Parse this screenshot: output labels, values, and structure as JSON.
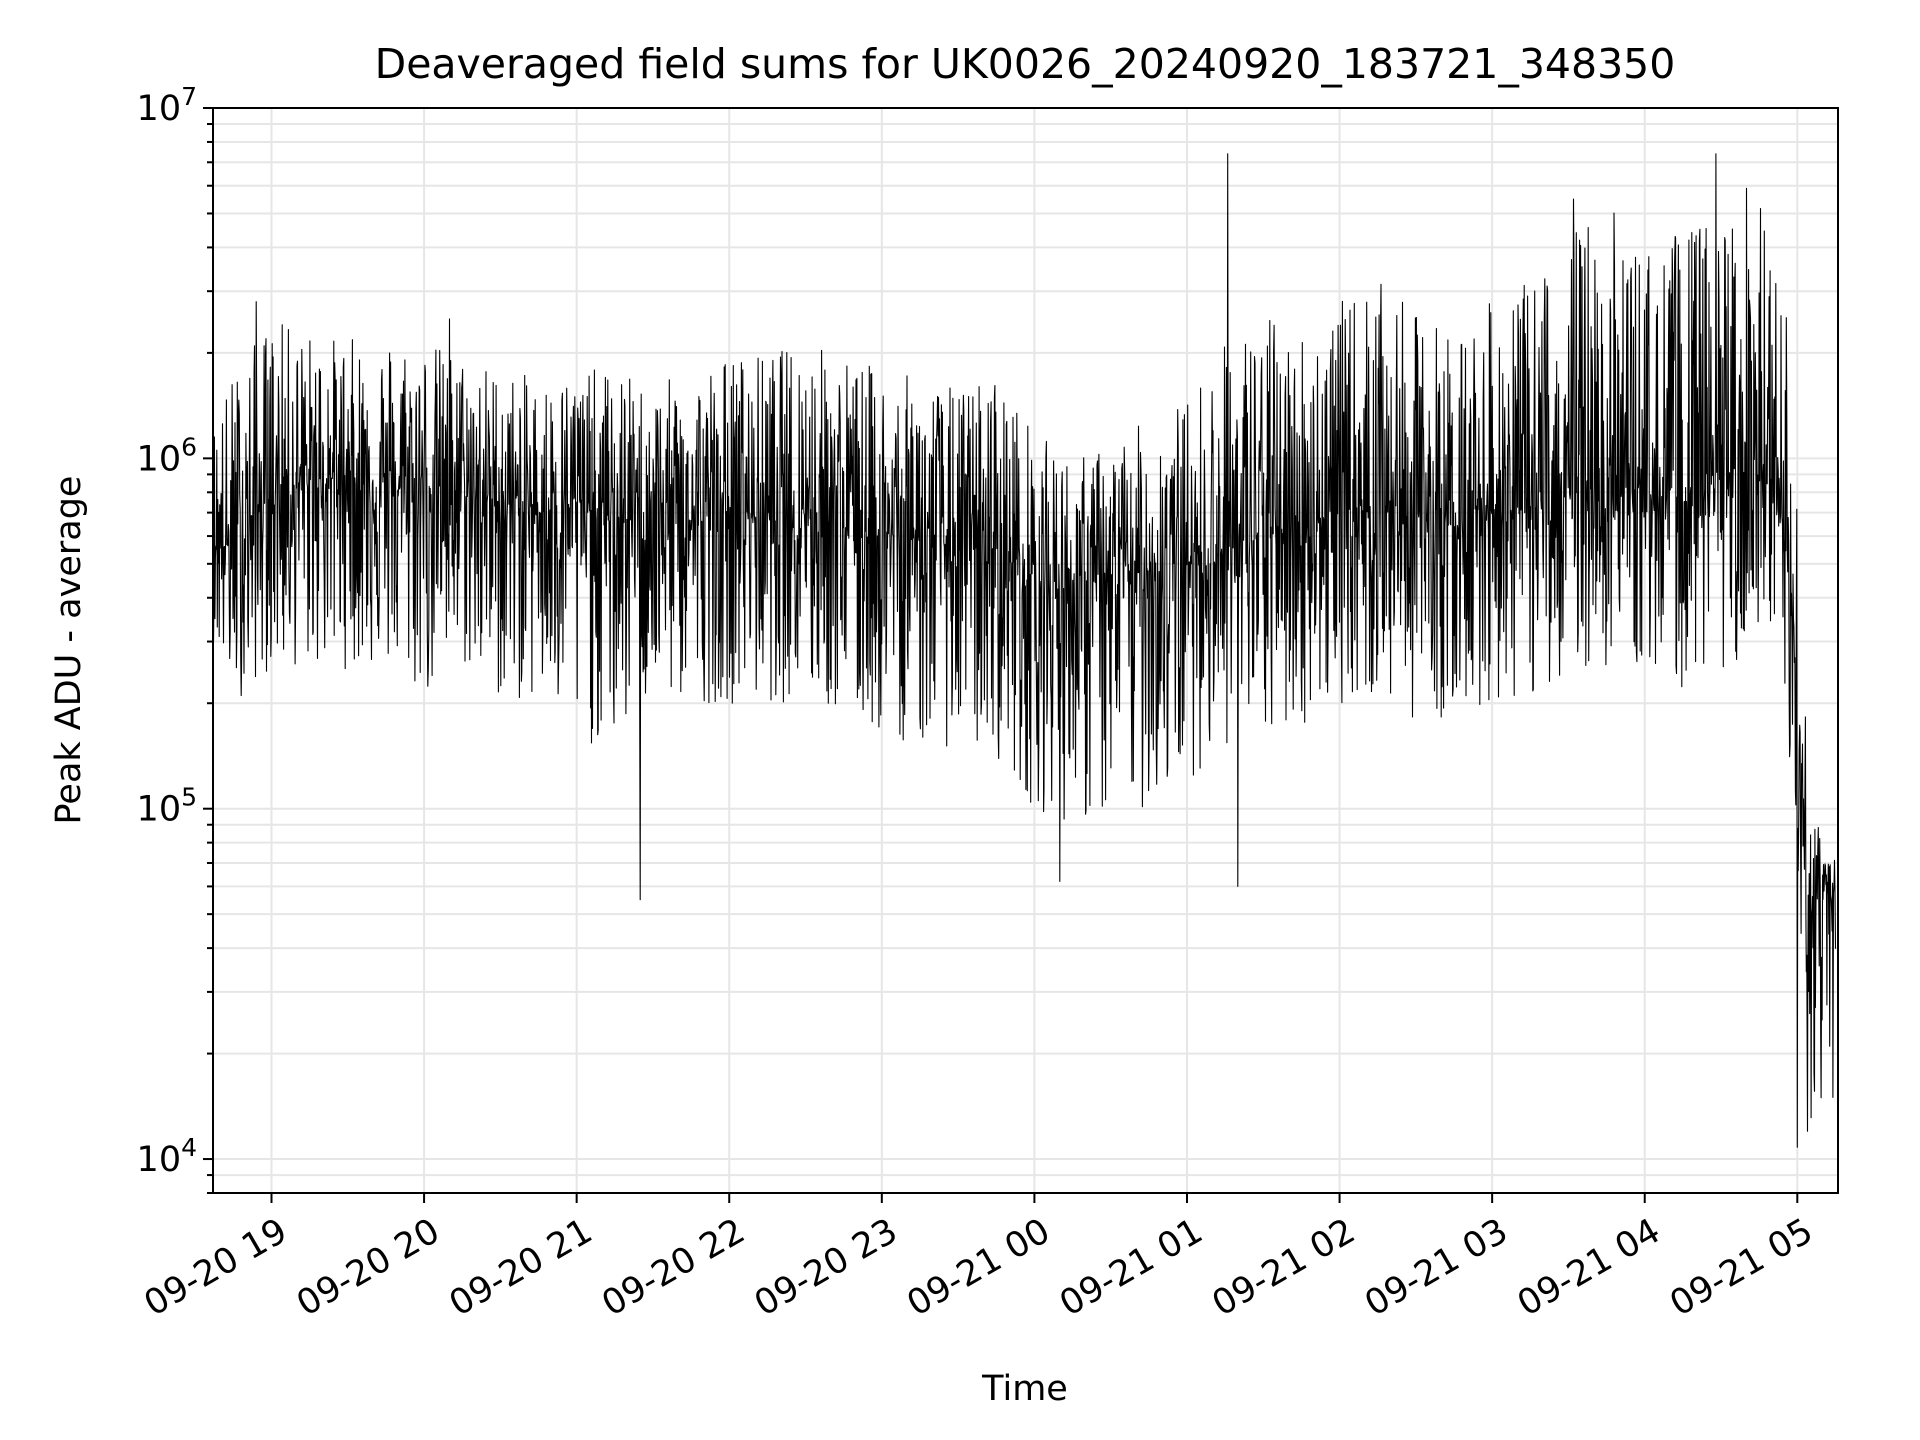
{
  "chart_data": {
    "type": "line",
    "title": "Deaveraged field sums for UK0026_20240920_183721_348350",
    "xlabel": "Time",
    "ylabel": "Peak ADU - average",
    "yscale": "log",
    "ylim": [
      8000,
      10000000
    ],
    "xlim": [
      "2024-09-20 18:37",
      "2024-09-21 05:16"
    ],
    "grid": true,
    "line_color": "#000000",
    "grid_color": "#e6e6e6",
    "y_ticks": [
      {
        "value": 10000,
        "base": "10",
        "exp": "4"
      },
      {
        "value": 100000,
        "base": "10",
        "exp": "5"
      },
      {
        "value": 1000000,
        "base": "10",
        "exp": "6"
      },
      {
        "value": 10000000,
        "base": "10",
        "exp": "7"
      }
    ],
    "x_ticks": [
      {
        "time": "2024-09-20 19:00",
        "label": "09-20 19"
      },
      {
        "time": "2024-09-20 20:00",
        "label": "09-20 20"
      },
      {
        "time": "2024-09-20 21:00",
        "label": "09-20 21"
      },
      {
        "time": "2024-09-20 22:00",
        "label": "09-20 22"
      },
      {
        "time": "2024-09-20 23:00",
        "label": "09-20 23"
      },
      {
        "time": "2024-09-21 00:00",
        "label": "09-21 00"
      },
      {
        "time": "2024-09-21 01:00",
        "label": "09-21 01"
      },
      {
        "time": "2024-09-21 02:00",
        "label": "09-21 02"
      },
      {
        "time": "2024-09-21 03:00",
        "label": "09-21 03"
      },
      {
        "time": "2024-09-21 04:00",
        "label": "09-21 04"
      },
      {
        "time": "2024-09-21 05:00",
        "label": "09-21 05"
      }
    ],
    "series": [
      {
        "x": [
          "2024-09-20 18:37",
          "2024-09-20 18:45",
          "2024-09-20 19:00",
          "2024-09-20 19:15",
          "2024-09-20 19:30",
          "2024-09-20 19:45",
          "2024-09-20 20:00",
          "2024-09-20 20:15",
          "2024-09-20 20:30",
          "2024-09-20 20:45",
          "2024-09-20 21:00",
          "2024-09-20 21:15",
          "2024-09-20 21:30",
          "2024-09-20 21:45",
          "2024-09-20 22:00",
          "2024-09-20 22:15",
          "2024-09-20 22:30",
          "2024-09-20 22:45",
          "2024-09-20 23:00",
          "2024-09-20 23:15",
          "2024-09-20 23:30",
          "2024-09-20 23:45",
          "2024-09-21 00:00",
          "2024-09-21 00:15",
          "2024-09-21 00:30",
          "2024-09-21 00:45",
          "2024-09-21 01:00",
          "2024-09-21 01:15",
          "2024-09-21 01:30",
          "2024-09-21 01:45",
          "2024-09-21 02:00",
          "2024-09-21 02:15",
          "2024-09-21 02:30",
          "2024-09-21 02:45",
          "2024-09-21 03:00",
          "2024-09-21 03:15",
          "2024-09-21 03:30",
          "2024-09-21 03:45",
          "2024-09-21 04:00",
          "2024-09-21 04:15",
          "2024-09-21 04:30",
          "2024-09-21 04:45",
          "2024-09-21 04:55",
          "2024-09-21 05:00",
          "2024-09-21 05:05",
          "2024-09-21 05:10",
          "2024-09-21 05:15"
        ],
        "y": [
          600000,
          550000,
          800000,
          850000,
          900000,
          800000,
          850000,
          800000,
          750000,
          700000,
          750000,
          650000,
          700000,
          650000,
          700000,
          700000,
          750000,
          650000,
          600000,
          600000,
          550000,
          550000,
          450000,
          420000,
          450000,
          480000,
          500000,
          550000,
          600000,
          650000,
          700000,
          750000,
          700000,
          650000,
          750000,
          700000,
          800000,
          850000,
          800000,
          750000,
          900000,
          950000,
          600000,
          200000,
          50000,
          60000,
          55000
        ],
        "y_min": [
          300000,
          200000,
          250000,
          250000,
          250000,
          250000,
          200000,
          250000,
          200000,
          200000,
          150000,
          150000,
          200000,
          200000,
          200000,
          200000,
          200000,
          180000,
          160000,
          150000,
          150000,
          140000,
          100000,
          90000,
          90000,
          100000,
          120000,
          150000,
          150000,
          170000,
          200000,
          200000,
          180000,
          180000,
          200000,
          200000,
          250000,
          250000,
          250000,
          220000,
          250000,
          250000,
          180000,
          40000,
          12000,
          15000,
          20000
        ],
        "y_max": [
          1300000,
          1800000,
          2500000,
          2300000,
          2200000,
          2300000,
          2200000,
          2000000,
          1800000,
          1700000,
          1800000,
          1800000,
          1600000,
          1800000,
          2000000,
          2000000,
          2200000,
          2000000,
          1800000,
          1700000,
          1600000,
          1800000,
          1200000,
          1000000,
          1100000,
          1300000,
          1500000,
          2200000,
          2600000,
          2400000,
          2800000,
          3200000,
          2600000,
          2400000,
          2800000,
          3200000,
          4500000,
          5500000,
          4000000,
          4500000,
          5000000,
          5500000,
          3000000,
          1000000,
          90000,
          95000,
          90000
        ],
        "spikes": [
          {
            "x": "2024-09-20 18:54",
            "y": 2800000
          },
          {
            "x": "2024-09-20 20:10",
            "y": 2500000
          },
          {
            "x": "2024-09-20 21:25",
            "y": 55000
          },
          {
            "x": "2024-09-21 00:10",
            "y": 62000
          },
          {
            "x": "2024-09-21 01:16",
            "y": 7400000
          },
          {
            "x": "2024-09-21 01:20",
            "y": 60000
          },
          {
            "x": "2024-09-21 03:32",
            "y": 5500000
          },
          {
            "x": "2024-09-21 04:12",
            "y": 4300000
          },
          {
            "x": "2024-09-21 04:28",
            "y": 7400000
          },
          {
            "x": "2024-09-21 04:40",
            "y": 5900000
          },
          {
            "x": "2024-09-21 05:00",
            "y": 10800
          },
          {
            "x": "2024-09-21 05:04",
            "y": 12000
          },
          {
            "x": "2024-09-21 05:14",
            "y": 15000
          }
        ]
      }
    ]
  }
}
